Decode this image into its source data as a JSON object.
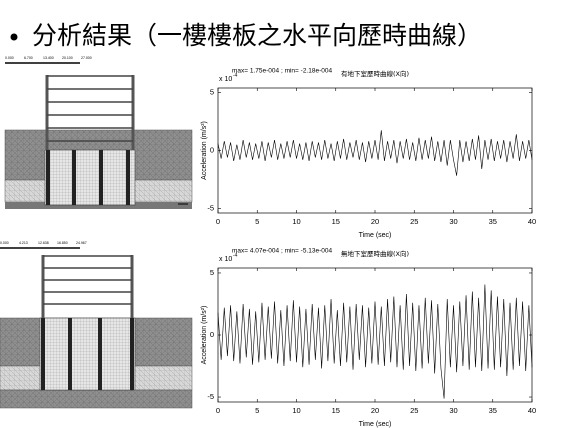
{
  "title": "分析結果（一樓樓板之水平向歷時曲線）",
  "models": [
    {
      "scale_labels": [
        "0.000",
        "6.700",
        "13.400",
        "20.100",
        "27.000"
      ]
    },
    {
      "scale_labels": [
        "0.000",
        "4.213",
        "12.638",
        "16.850",
        "24.967"
      ]
    }
  ],
  "chart_data": [
    {
      "type": "line",
      "title": "有地下室歷時曲線(X向)",
      "annotation": "max= 1.75e-004 ; min= -2.18e-004",
      "y_multiplier": "x 10",
      "y_multiplier_exp": "-4",
      "xlabel": "Time (sec)",
      "ylabel": "Acceleration (m/s²)",
      "xlim": [
        0,
        40
      ],
      "xticks": [
        0,
        5,
        10,
        15,
        20,
        25,
        30,
        35,
        40
      ],
      "ylim": [
        -5.4,
        5.4
      ],
      "yticks": [
        -5,
        0,
        5
      ],
      "grid": false,
      "x": [
        0,
        0.4,
        0.8,
        1.2,
        1.6,
        2,
        2.4,
        2.8,
        3.2,
        3.6,
        4,
        4.4,
        4.8,
        5.2,
        5.6,
        6,
        6.4,
        6.8,
        7.2,
        7.6,
        8,
        8.4,
        8.8,
        9.2,
        9.6,
        10,
        10.4,
        10.8,
        11.2,
        11.6,
        12,
        12.4,
        12.8,
        13.2,
        13.6,
        14,
        14.4,
        14.8,
        15.2,
        15.6,
        16,
        16.4,
        16.8,
        17.2,
        17.6,
        18,
        18.4,
        18.8,
        19.2,
        19.6,
        20,
        20.4,
        20.8,
        21.2,
        21.6,
        22,
        22.4,
        22.8,
        23.2,
        23.6,
        24,
        24.4,
        24.8,
        25.2,
        25.6,
        26,
        26.4,
        26.8,
        27.2,
        27.6,
        28,
        28.4,
        28.8,
        29.2,
        29.6,
        30,
        30.4,
        30.8,
        31.2,
        31.6,
        32,
        32.4,
        32.8,
        33.2,
        33.6,
        34,
        34.4,
        34.8,
        35.2,
        35.6,
        36,
        36.4,
        36.8,
        37.2,
        37.6,
        38,
        38.4,
        38.8,
        39.2,
        39.6,
        40
      ],
      "series": [
        {
          "color": "#000000",
          "values": [
            0.6,
            -0.7,
            0.8,
            -0.6,
            0.7,
            -0.9,
            0.5,
            -0.8,
            0.9,
            -0.6,
            0.7,
            -0.8,
            0.6,
            -0.7,
            0.8,
            -0.9,
            0.7,
            -0.6,
            0.9,
            -0.8,
            0.6,
            -0.7,
            0.8,
            -0.6,
            0.9,
            -0.7,
            0.6,
            -0.8,
            0.7,
            -0.9,
            0.8,
            -0.6,
            0.7,
            -0.8,
            0.9,
            -0.7,
            0.6,
            -0.9,
            0.8,
            -0.7,
            1.0,
            -0.8,
            0.7,
            -0.6,
            0.9,
            -0.8,
            0.7,
            -1.0,
            0.8,
            -0.7,
            0.9,
            -0.8,
            1.75,
            -0.9,
            0.8,
            -0.7,
            0.9,
            -1.1,
            0.8,
            -0.7,
            1.0,
            -0.8,
            0.7,
            -0.9,
            1.1,
            -0.8,
            0.9,
            -0.7,
            1.2,
            -0.9,
            0.8,
            -1.0,
            0.9,
            -1.3,
            0.9,
            -0.8,
            -2.18,
            0.9,
            -1.0,
            0.8,
            -0.9,
            1.0,
            -0.8,
            1.3,
            -1.6,
            0.9,
            -0.8,
            1.0,
            -0.9,
            0.8,
            -0.7,
            0.9,
            -1.0,
            0.8,
            -0.7,
            1.4,
            -0.9,
            0.8,
            -0.7,
            0.9,
            -0.8
          ]
        }
      ]
    },
    {
      "type": "line",
      "title": "無地下室歷時曲線(X向)",
      "annotation": "max= 4.07e-004 ; min= -5.13e-004",
      "y_multiplier": "x 10",
      "y_multiplier_exp": "-4",
      "xlabel": "Time (sec)",
      "ylabel": "Acceleration (m/s²)",
      "xlim": [
        0,
        40
      ],
      "xticks": [
        0,
        5,
        10,
        15,
        20,
        25,
        30,
        35,
        40
      ],
      "ylim": [
        -5.4,
        5.4
      ],
      "yticks": [
        -5,
        0,
        5
      ],
      "grid": false,
      "x": [
        0,
        0.4,
        0.8,
        1.2,
        1.6,
        2,
        2.4,
        2.8,
        3.2,
        3.6,
        4,
        4.4,
        4.8,
        5.2,
        5.6,
        6,
        6.4,
        6.8,
        7.2,
        7.6,
        8,
        8.4,
        8.8,
        9.2,
        9.6,
        10,
        10.4,
        10.8,
        11.2,
        11.6,
        12,
        12.4,
        12.8,
        13.2,
        13.6,
        14,
        14.4,
        14.8,
        15.2,
        15.6,
        16,
        16.4,
        16.8,
        17.2,
        17.6,
        18,
        18.4,
        18.8,
        19.2,
        19.6,
        20,
        20.4,
        20.8,
        21.2,
        21.6,
        22,
        22.4,
        22.8,
        23.2,
        23.6,
        24,
        24.4,
        24.8,
        25.2,
        25.6,
        26,
        26.4,
        26.8,
        27.2,
        27.6,
        28,
        28.4,
        28.8,
        29.2,
        29.6,
        30,
        30.4,
        30.8,
        31.2,
        31.6,
        32,
        32.4,
        32.8,
        33.2,
        33.6,
        34,
        34.4,
        34.8,
        35.2,
        35.6,
        36,
        36.4,
        36.8,
        37.2,
        37.6,
        38,
        38.4,
        38.8,
        39.2,
        39.6,
        40
      ],
      "series": [
        {
          "color": "#000000",
          "values": [
            1.8,
            -2.0,
            2.2,
            -1.7,
            2.4,
            -2.1,
            1.9,
            -2.3,
            2.5,
            -1.8,
            2.1,
            -2.4,
            1.9,
            -2.2,
            2.6,
            -2.0,
            2.3,
            -1.9,
            2.7,
            -2.3,
            2.0,
            -2.5,
            2.4,
            -2.1,
            2.8,
            -2.2,
            2.3,
            -2.6,
            2.1,
            -2.4,
            2.5,
            -2.0,
            2.2,
            -2.7,
            2.4,
            -2.1,
            2.9,
            -2.3,
            2.0,
            -2.5,
            2.6,
            -2.2,
            2.3,
            -2.8,
            2.5,
            -2.0,
            2.4,
            -2.6,
            2.2,
            -2.3,
            2.7,
            -2.4,
            2.3,
            -2.5,
            2.9,
            -2.2,
            3.1,
            -2.6,
            2.4,
            -2.8,
            3.3,
            -2.5,
            2.6,
            -2.9,
            2.4,
            -2.7,
            3.0,
            -2.3,
            2.8,
            -3.1,
            2.5,
            -2.7,
            -5.13,
            2.9,
            -2.6,
            2.4,
            -3.0,
            2.7,
            -2.5,
            3.2,
            -2.8,
            3.5,
            -2.6,
            3.0,
            -2.9,
            4.07,
            -2.7,
            3.6,
            -2.8,
            3.1,
            -2.6,
            2.9,
            -3.3,
            2.6,
            -2.8,
            3.0,
            -2.5,
            2.7,
            -2.9,
            2.4,
            -2.6
          ]
        }
      ]
    }
  ]
}
